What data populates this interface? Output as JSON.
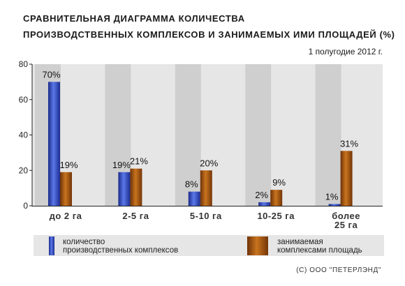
{
  "chart_data": {
    "type": "bar",
    "title_line1": "СРАВНИТЕЛЬНАЯ  ДИАГРАММА  КОЛИЧЕСТВА",
    "title_line2": "ПРОИЗВОДСТВЕННЫХ КОМПЛЕКСОВ И ЗАНИМАЕМЫХ ИМИ ПЛОЩАДЕЙ (%)",
    "subtitle": "1 полугодие 2012 г.",
    "categories": [
      [
        "до 2 га"
      ],
      [
        "2-5 га"
      ],
      [
        "5-10 га"
      ],
      [
        "10-25 га"
      ],
      [
        "более",
        "25 га"
      ]
    ],
    "series": [
      {
        "name_lines": [
          "количество",
          "производственных комплексов"
        ],
        "color": "#2a3fb0",
        "values": [
          70,
          19,
          8,
          2,
          1
        ],
        "labels": [
          "70%",
          "19%",
          "8%",
          "2%",
          "1%"
        ]
      },
      {
        "name_lines": [
          "занимаемая",
          "комплексами площадь"
        ],
        "color": "#9a4a10",
        "values": [
          19,
          21,
          20,
          9,
          31
        ],
        "labels": [
          "19%",
          "21%",
          "20%",
          "9%",
          "31%"
        ]
      }
    ],
    "ylim": [
      0,
      80
    ],
    "yticks": [
      0,
      20,
      40,
      60,
      80
    ],
    "yticklabels": [
      "0",
      "20",
      "40",
      "60",
      "80"
    ],
    "grid": false,
    "legend_position": "bottom"
  },
  "copyright": "(C) ООО \"ПЕТЕРЛЭНД\""
}
